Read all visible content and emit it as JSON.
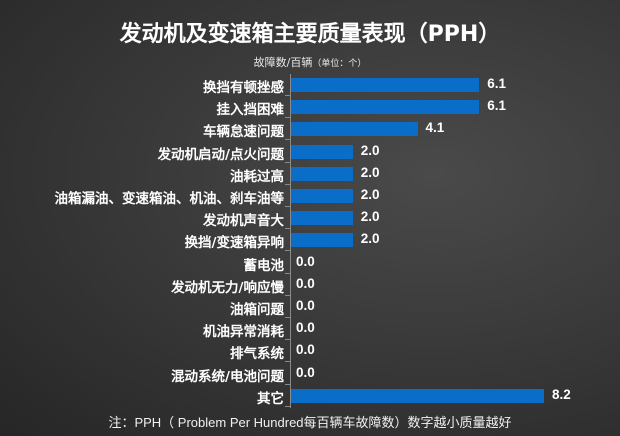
{
  "title": "发动机及变速箱主要质量表现（PPH）",
  "subtitle": {
    "main": "故障数/百辆",
    "unit": "（单位：个）"
  },
  "note": "注：PPH（ Problem Per Hundred每百辆车故障数）数字越小质量越好",
  "colors": {
    "bar": "#0a6ec8",
    "background": "#3a3a3a",
    "text": "#ffffff"
  },
  "chart_data": {
    "type": "bar",
    "orientation": "horizontal",
    "title": "发动机及变速箱主要质量表现（PPH）",
    "xlabel": "故障数/百辆（单位：个）",
    "ylabel": "",
    "categories": [
      "换挡有顿挫感",
      "挂入挡困难",
      "车辆怠速问题",
      "发动机启动/点火问题",
      "油耗过高",
      "油箱漏油、变速箱油、机油、刹车油等",
      "发动机声音大",
      "换挡/变速箱异响",
      "蓄电池",
      "发动机无力/响应慢",
      "油箱问题",
      "机油异常消耗",
      "排气系统",
      "混动系统/电池问题",
      "其它"
    ],
    "values": [
      6.1,
      6.1,
      4.1,
      2.0,
      2.0,
      2.0,
      2.0,
      2.0,
      0.0,
      0.0,
      0.0,
      0.0,
      0.0,
      0.0,
      8.2
    ],
    "value_labels": [
      "6.1",
      "6.1",
      "4.1",
      "2.0",
      "2.0",
      "2.0",
      "2.0",
      "2.0",
      "0.0",
      "0.0",
      "0.0",
      "0.0",
      "0.0",
      "0.0",
      "8.2"
    ],
    "xlim": [
      0,
      8.2
    ],
    "grid": false,
    "legend": null,
    "data_labels": true
  }
}
